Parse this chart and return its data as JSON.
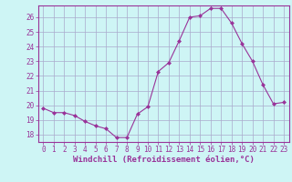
{
  "x": [
    0,
    1,
    2,
    3,
    4,
    5,
    6,
    7,
    8,
    9,
    10,
    11,
    12,
    13,
    14,
    15,
    16,
    17,
    18,
    19,
    20,
    21,
    22,
    23
  ],
  "y": [
    19.8,
    19.5,
    19.5,
    19.3,
    18.9,
    18.6,
    18.4,
    17.8,
    17.8,
    19.4,
    19.9,
    22.3,
    22.9,
    24.4,
    26.0,
    26.1,
    26.6,
    26.6,
    25.6,
    24.2,
    23.0,
    21.4,
    20.1,
    20.2
  ],
  "line_color": "#993399",
  "marker": "D",
  "marker_size": 2.0,
  "bg_color": "#cef5f5",
  "grid_color": "#aaaacc",
  "xlabel": "Windchill (Refroidissement éolien,°C)",
  "ylabel": "",
  "ylim": [
    17.5,
    26.8
  ],
  "yticks": [
    18,
    19,
    20,
    21,
    22,
    23,
    24,
    25,
    26
  ],
  "xticks": [
    0,
    1,
    2,
    3,
    4,
    5,
    6,
    7,
    8,
    9,
    10,
    11,
    12,
    13,
    14,
    15,
    16,
    17,
    18,
    19,
    20,
    21,
    22,
    23
  ],
  "tick_label_size": 5.5,
  "xlabel_size": 6.5,
  "linewidth": 0.8
}
